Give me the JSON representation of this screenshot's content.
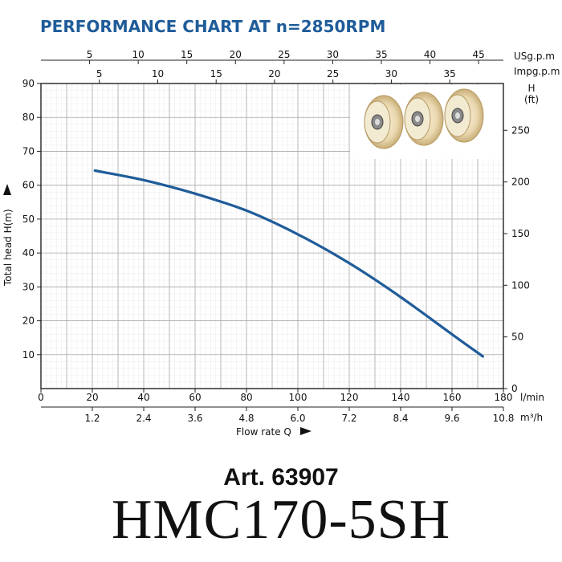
{
  "header": {
    "title": "PERFORMANCE CHART AT n=2850RPM"
  },
  "product": {
    "article": "Art. 63907",
    "model": "HMC170-5SH"
  },
  "chart_data": {
    "type": "line",
    "title": "PERFORMANCE CHART AT n=2850RPM",
    "xlabel": "Flow rate Q",
    "ylabel": "Total head H(m)",
    "xlim": [
      0,
      180
    ],
    "ylim": [
      0,
      90
    ],
    "x_unit": "l/min",
    "y_unit": "m",
    "grid": true,
    "series": [
      {
        "x": [
          21,
          40,
          60,
          80,
          100,
          120,
          140,
          160,
          172
        ],
        "y": [
          64.3,
          61.5,
          57.5,
          52.5,
          45.5,
          37,
          27,
          16,
          9.5
        ],
        "color": "#1f5c99"
      }
    ],
    "axes": {
      "left": {
        "ticks": [
          "10",
          "20",
          "30",
          "40",
          "50",
          "60",
          "70",
          "80",
          "90"
        ]
      },
      "bottom_lmin": {
        "unit": "l/min",
        "ticks": [
          "0",
          "20",
          "40",
          "60",
          "80",
          "100",
          "120",
          "140",
          "160",
          "180"
        ]
      },
      "bottom_m3h": {
        "unit": "m³/h",
        "ticks": [
          "1.2",
          "2.4",
          "3.6",
          "4.8",
          "6.0",
          "7.2",
          "8.4",
          "9.6",
          "10.8"
        ]
      },
      "top_usgpm": {
        "unit": "USg.p.m",
        "ticks": [
          "5",
          "10",
          "15",
          "20",
          "25",
          "30",
          "35",
          "40",
          "45"
        ]
      },
      "top_impgpm": {
        "unit": "Impg.p.m",
        "ticks": [
          "5",
          "10",
          "15",
          "20",
          "25",
          "30",
          "35"
        ]
      },
      "right_ft": {
        "unit_line1": "H",
        "unit_line2": "(ft)",
        "ticks": [
          "0",
          "50",
          "100",
          "150",
          "200",
          "250"
        ]
      }
    },
    "colors": {
      "curve": "#1f5c99",
      "title": "#1f5c99",
      "grid": "#c8c8c8"
    }
  }
}
